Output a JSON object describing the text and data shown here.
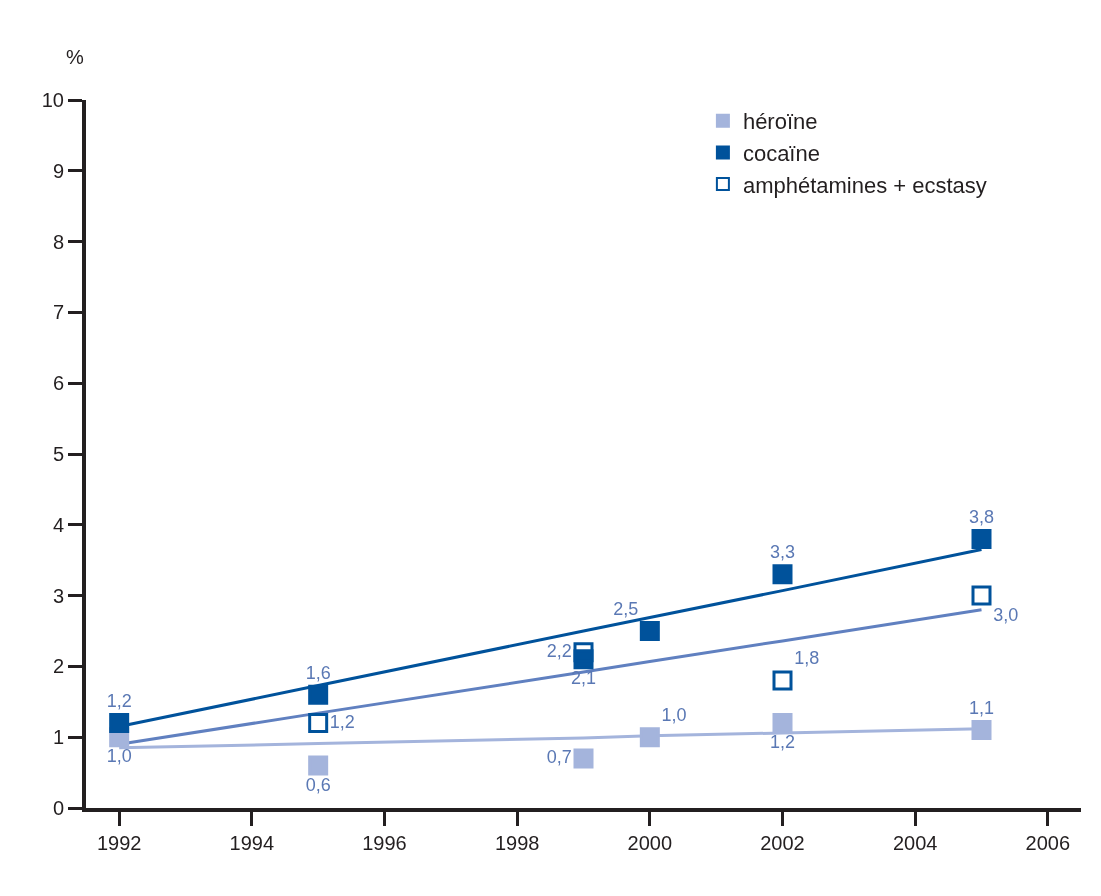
{
  "chart_data": {
    "type": "scatter",
    "ylabel": "%",
    "x": [
      1992,
      1995,
      1999,
      2000,
      2002,
      2005
    ],
    "xlim": [
      1991.5,
      2006.5
    ],
    "xticks": [
      1992,
      1994,
      1996,
      1998,
      2000,
      2002,
      2004,
      2006
    ],
    "ylim": [
      0,
      10
    ],
    "yticks": [
      0,
      1,
      2,
      3,
      4,
      5,
      6,
      7,
      8,
      9,
      10
    ],
    "legend": "top right",
    "marker": "square",
    "series": [
      {
        "name": "héroïne",
        "color": "#a4b4dc",
        "values": [
          1.0,
          0.6,
          0.7,
          1.0,
          1.2,
          1.1
        ],
        "value_labels": [
          "1,0",
          "0,6",
          "0,7",
          "1,0",
          "1,2",
          "1,1"
        ]
      },
      {
        "name": "cocaïne",
        "color": "#00529b",
        "values": [
          1.2,
          1.6,
          2.1,
          2.5,
          3.3,
          3.8
        ],
        "value_labels": [
          "1,2",
          "1,6",
          "2,1",
          "2,5",
          "3,3",
          "3,8"
        ]
      },
      {
        "name": "amphétamines + ecstasy",
        "color": "#00529b",
        "marker": "square-open",
        "values": [
          null,
          1.2,
          2.2,
          null,
          1.8,
          3.0
        ],
        "value_labels": [
          null,
          "1,2",
          "2,2",
          null,
          "1,8",
          "3,0"
        ]
      },
      {
        "type": "line",
        "marker": "none",
        "color": "#a4b4dc",
        "values": [
          0.85,
          0.91,
          0.99,
          1.02,
          1.06,
          1.12
        ]
      },
      {
        "type": "line",
        "marker": "none",
        "color": "#00529b",
        "values": [
          1.15,
          1.73,
          2.5,
          2.69,
          3.07,
          3.65
        ]
      },
      {
        "type": "line",
        "marker": "none",
        "color": "#6080c0",
        "values": [
          0.9,
          1.34,
          1.92,
          2.07,
          2.36,
          2.8
        ]
      }
    ]
  }
}
